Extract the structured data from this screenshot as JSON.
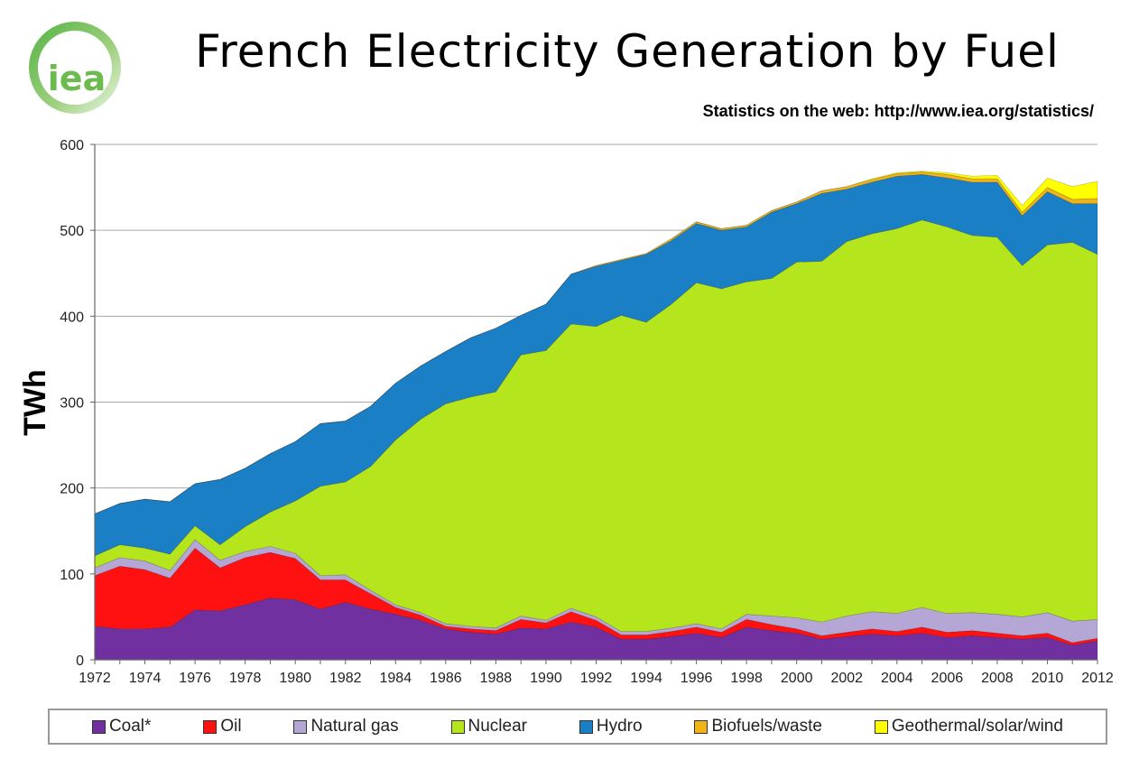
{
  "header": {
    "title": "French Electricity Generation by Fuel",
    "subtitle": "Statistics on the web: http://www.iea.org/statistics/",
    "logo_text": "iea"
  },
  "chart_data": {
    "type": "area",
    "stacked": true,
    "title": "French Electricity Generation by Fuel",
    "xlabel": "",
    "ylabel": "TWh",
    "ylim": [
      0,
      600
    ],
    "yticks": [
      0,
      100,
      200,
      300,
      400,
      500,
      600
    ],
    "xticks": [
      1972,
      1974,
      1976,
      1978,
      1980,
      1982,
      1984,
      1986,
      1988,
      1990,
      1992,
      1994,
      1996,
      1998,
      2000,
      2002,
      2004,
      2006,
      2008,
      2010,
      2012
    ],
    "grid": "horizontal",
    "legend_position": "bottom",
    "x": [
      1972,
      1973,
      1974,
      1975,
      1976,
      1977,
      1978,
      1979,
      1980,
      1981,
      1982,
      1983,
      1984,
      1985,
      1986,
      1987,
      1988,
      1989,
      1990,
      1991,
      1992,
      1993,
      1994,
      1995,
      1996,
      1997,
      1998,
      1999,
      2000,
      2001,
      2002,
      2003,
      2004,
      2005,
      2006,
      2007,
      2008,
      2009,
      2010,
      2011,
      2012
    ],
    "series": [
      {
        "name": "Coal*",
        "color": "#7030a0",
        "values": [
          39,
          36,
          36,
          38,
          58,
          57,
          64,
          72,
          70,
          59,
          67,
          59,
          53,
          46,
          36,
          32,
          30,
          37,
          36,
          44,
          38,
          24,
          24,
          27,
          31,
          26,
          38,
          34,
          31,
          24,
          27,
          30,
          28,
          31,
          26,
          28,
          26,
          24,
          26,
          17,
          22
        ]
      },
      {
        "name": "Oil",
        "color": "#ff1111",
        "values": [
          59,
          73,
          69,
          57,
          72,
          50,
          55,
          53,
          48,
          34,
          26,
          18,
          8,
          6,
          3,
          4,
          4,
          10,
          7,
          12,
          8,
          5,
          5,
          6,
          7,
          6,
          9,
          7,
          5,
          4,
          5,
          6,
          5,
          7,
          6,
          6,
          5,
          4,
          5,
          3,
          3
        ]
      },
      {
        "name": "Natural gas",
        "color": "#b4a7d6",
        "values": [
          9,
          10,
          10,
          9,
          10,
          9,
          7,
          7,
          6,
          5,
          6,
          4,
          3,
          3,
          3,
          3,
          3,
          4,
          3,
          4,
          4,
          4,
          4,
          4,
          4,
          4,
          6,
          10,
          13,
          16,
          19,
          20,
          21,
          23,
          22,
          21,
          22,
          22,
          24,
          25,
          22
        ]
      },
      {
        "name": "Nuclear",
        "color": "#b5e61d",
        "values": [
          14,
          15,
          15,
          19,
          16,
          18,
          29,
          40,
          61,
          104,
          108,
          144,
          192,
          225,
          256,
          267,
          275,
          304,
          314,
          331,
          338,
          368,
          360,
          377,
          397,
          396,
          387,
          393,
          414,
          420,
          436,
          440,
          448,
          451,
          450,
          439,
          439,
          409,
          428,
          441,
          425
        ]
      },
      {
        "name": "Hydro",
        "color": "#1a7fc4",
        "values": [
          49,
          48,
          57,
          61,
          49,
          76,
          68,
          68,
          69,
          73,
          71,
          70,
          66,
          62,
          61,
          69,
          74,
          46,
          54,
          58,
          70,
          64,
          79,
          74,
          69,
          68,
          64,
          77,
          68,
          79,
          61,
          60,
          61,
          53,
          57,
          62,
          64,
          58,
          62,
          45,
          59
        ]
      },
      {
        "name": "Biofuels/waste",
        "color": "#f0b41a",
        "values": [
          0,
          0,
          0,
          0,
          0,
          0,
          0,
          0,
          0,
          0,
          0,
          0,
          0,
          0,
          0,
          0,
          0,
          0,
          0,
          0,
          1,
          1,
          1,
          2,
          2,
          2,
          2,
          2,
          2,
          3,
          3,
          3,
          3,
          3,
          4,
          4,
          4,
          4,
          5,
          5,
          6
        ]
      },
      {
        "name": "Geothermal/solar/wind",
        "color": "#ffff00",
        "values": [
          0,
          0,
          0,
          0,
          0,
          0,
          0,
          0,
          0,
          0,
          0,
          0,
          0,
          0,
          0,
          0,
          0,
          0,
          0,
          0,
          0,
          0,
          0,
          0,
          0,
          0,
          0,
          0,
          0,
          0,
          0,
          1,
          1,
          1,
          2,
          3,
          4,
          8,
          11,
          15,
          20
        ]
      }
    ]
  }
}
